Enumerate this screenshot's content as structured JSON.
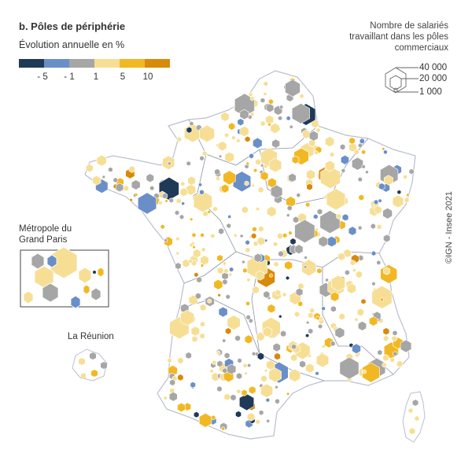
{
  "title": "b. Pôles de périphérie",
  "subtitle": "Évolution annuelle en %",
  "color_legend": {
    "colors": [
      "#1f3a57",
      "#6a8fc8",
      "#a6a6a6",
      "#f6df95",
      "#f2b824",
      "#d98a0b"
    ],
    "ticks": [
      "- 5",
      "- 1",
      "1",
      "5",
      "10"
    ]
  },
  "size_legend": {
    "title_lines": [
      "Nombre de salariés",
      "travaillant dans les pôles",
      "commerciaux"
    ],
    "values": [
      "40 000",
      "20 000",
      "1 000"
    ]
  },
  "insets": {
    "paris_line1": "Métropole du",
    "paris_line2": "Grand Paris",
    "reunion": "La Réunion"
  },
  "credit": "©IGN - Insee 2021"
}
